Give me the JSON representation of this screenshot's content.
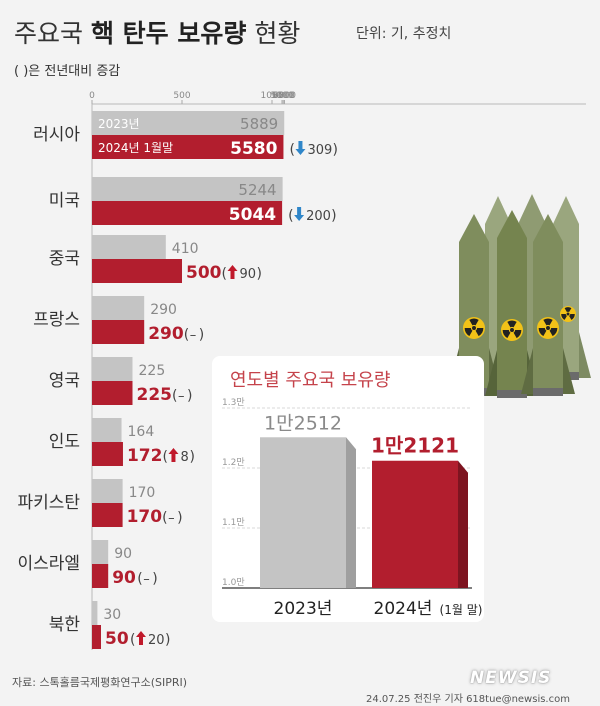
{
  "header": {
    "title_prefix": "주요국",
    "title_bold": "핵 탄두 보유량",
    "title_suffix": "현황",
    "unit": "단위: 기, 추정치",
    "note": "( )은 전년대비 증감"
  },
  "colors": {
    "bar_2023": "#c4c4c4",
    "bar_2024": "#b21e2e",
    "arrow_up": "#c0192b",
    "arrow_down": "#2f86c9",
    "inset_title": "#c5434b"
  },
  "chart_data": [
    {
      "type": "bar",
      "orientation": "horizontal",
      "axis_ticks": [
        "0",
        "500",
        "1000",
        "5000",
        "5500",
        "6000"
      ],
      "axis_breaks": true,
      "series_labels": [
        "2023년",
        "2024년 1월말"
      ],
      "categories": [
        "러시아",
        "미국",
        "중국",
        "프랑스",
        "영국",
        "인도",
        "파키스탄",
        "이스라엘",
        "북한"
      ],
      "series": [
        {
          "name": "2023년",
          "values": [
            5889,
            5244,
            410,
            290,
            225,
            164,
            170,
            90,
            30
          ]
        },
        {
          "name": "2024년 1월말",
          "values": [
            5580,
            5044,
            500,
            290,
            225,
            172,
            170,
            90,
            50
          ]
        }
      ],
      "change_labels": [
        "309",
        "200",
        "90",
        "–",
        "–",
        "8",
        "–",
        "–",
        "20"
      ],
      "change_directions": [
        "down",
        "down",
        "up",
        "none",
        "none",
        "up",
        "none",
        "none",
        "up"
      ]
    },
    {
      "type": "bar",
      "title": "연도별 주요국 보유량",
      "categories": [
        "2023년",
        "2024년"
      ],
      "category_notes": [
        "",
        "(1월 말)"
      ],
      "values": [
        12512,
        12121
      ],
      "value_labels": [
        "1만2512",
        "1만2121"
      ],
      "y_ticks": [
        "1.0만",
        "1.1만",
        "1.2만",
        "1.3만"
      ],
      "ylim": [
        10000,
        13000
      ]
    }
  ],
  "footer": {
    "source": "자료: 스톡홀름국제평화연구소(SIPRI)",
    "logo": "NEWSIS",
    "credit": "24.07.25 전진우 기자 618tue@newsis.com"
  }
}
